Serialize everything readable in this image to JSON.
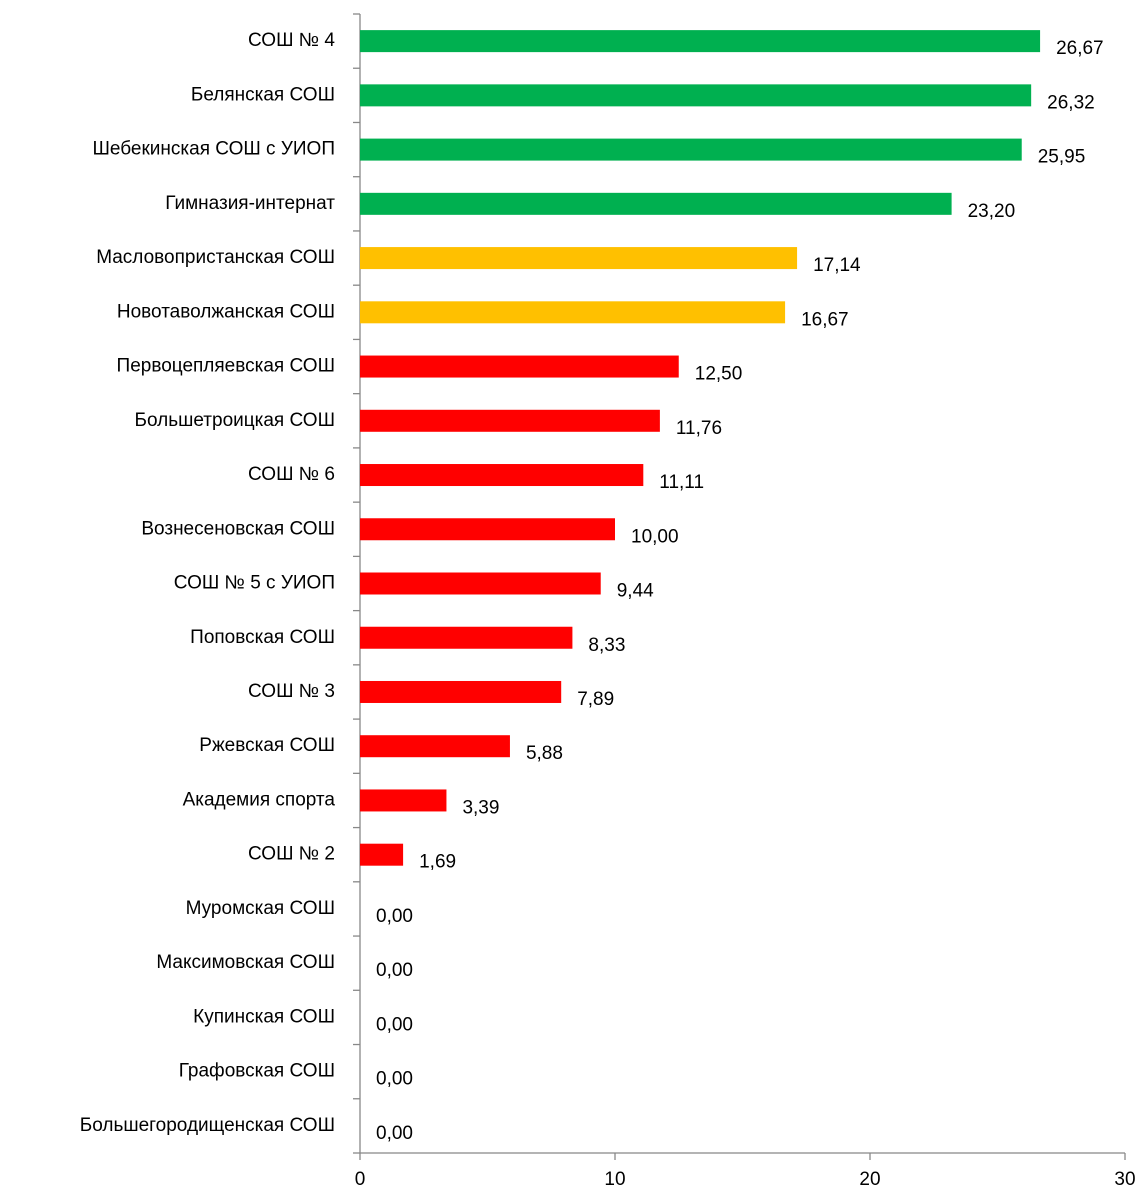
{
  "chart_data": {
    "type": "bar",
    "orientation": "horizontal",
    "categories": [
      "СОШ № 4",
      "Белянская СОШ",
      "Шебекинская СОШ с УИОП",
      "Гимназия-интернат",
      "Масловопристанская СОШ",
      "Новотаволжанская СОШ",
      "Первоцепляевская СОШ",
      "Большетроицкая СОШ",
      "СОШ № 6",
      "Вознесеновская СОШ",
      "СОШ № 5 с УИОП",
      "Поповская СОШ",
      "СОШ № 3",
      "Ржевская СОШ",
      "Академия спорта",
      "СОШ № 2",
      "Муромская СОШ",
      "Максимовская СОШ",
      "Купинская СОШ",
      "Графовская СОШ",
      "Большегородищенская СОШ"
    ],
    "values": [
      26.67,
      26.32,
      25.95,
      23.2,
      17.14,
      16.67,
      12.5,
      11.76,
      11.11,
      10.0,
      9.44,
      8.33,
      7.89,
      5.88,
      3.39,
      1.69,
      0,
      0,
      0,
      0,
      0
    ],
    "value_labels": [
      "26,67",
      "26,32",
      "25,95",
      "23,20",
      "17,14",
      "16,67",
      "12,50",
      "11,76",
      "11,11",
      "10,00",
      "9,44",
      "8,33",
      "7,89",
      "5,88",
      "3,39",
      "1,69",
      "0,00",
      "0,00",
      "0,00",
      "0,00",
      "0,00"
    ],
    "colors": [
      "#00b050",
      "#00b050",
      "#00b050",
      "#00b050",
      "#ffc000",
      "#ffc000",
      "#ff0000",
      "#ff0000",
      "#ff0000",
      "#ff0000",
      "#ff0000",
      "#ff0000",
      "#ff0000",
      "#ff0000",
      "#ff0000",
      "#ff0000",
      "#ff0000",
      "#ff0000",
      "#ff0000",
      "#ff0000",
      "#ff0000"
    ],
    "xlim": [
      0,
      30
    ],
    "xticks": [
      0,
      10,
      20,
      30
    ],
    "grid": false
  }
}
